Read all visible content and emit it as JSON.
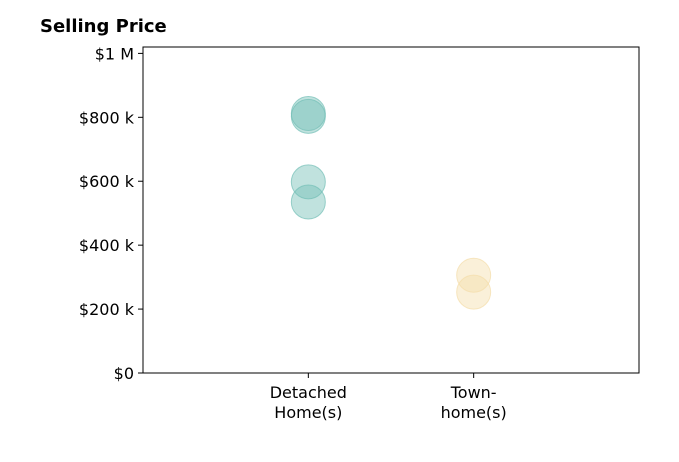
{
  "chart_data": {
    "type": "scatter",
    "title": "Selling Price",
    "xlabel": "",
    "ylabel": "",
    "categories": [
      "Detached\nHome(s)",
      "Town-\nhome(s)"
    ],
    "ylim": [
      0,
      1020000
    ],
    "xlim": [
      0,
      3
    ],
    "y_ticks": [
      0,
      200000,
      400000,
      600000,
      800000,
      1000000
    ],
    "y_tick_labels": [
      "$0",
      "$200 k",
      "$400 k",
      "$600 k",
      "$800 k",
      "$1 M"
    ],
    "grid": false,
    "series": [
      {
        "category_index": 0,
        "color": "#74bfb6",
        "values": [
          812000,
          803000,
          598000,
          535000
        ]
      },
      {
        "category_index": 1,
        "color": "#f3ddaa",
        "values": [
          306000,
          253000
        ]
      }
    ]
  }
}
